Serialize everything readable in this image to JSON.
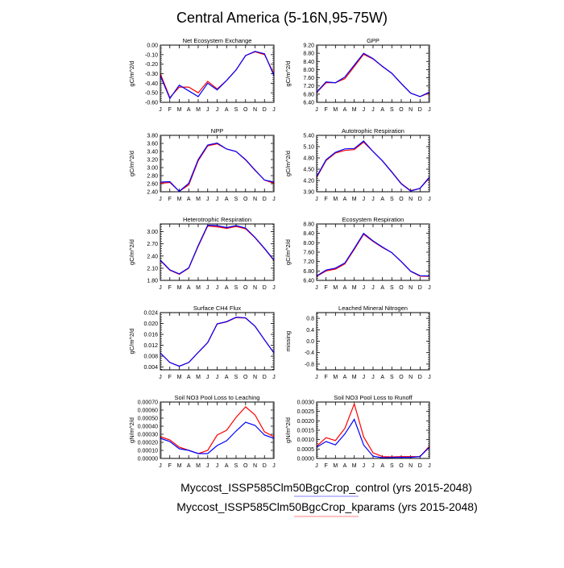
{
  "title": "Central America (5-16N,95-75W)",
  "legend": [
    {
      "label": "Myccost_ISSP585Clm50BgcCrop_control (yrs 2015-2048)",
      "color": "#0000ff"
    },
    {
      "label": "Myccost_ISSP585Clm50BgcCrop_kparams (yrs 2015-2048)",
      "color": "#ff0000"
    }
  ],
  "chart_data": [
    {
      "type": "line",
      "title": "Net Ecosystem Exchange",
      "ylabel": "gC/m^2/d",
      "ylim": [
        -0.6,
        0.0
      ],
      "yticks": [
        "0.00",
        "-0.10",
        "-0.20",
        "-0.30",
        "-0.40",
        "-0.50",
        "-0.60"
      ],
      "ytickvals": [
        0,
        -0.1,
        -0.2,
        -0.3,
        -0.4,
        -0.5,
        -0.6
      ],
      "categories": [
        "J",
        "F",
        "M",
        "A",
        "M",
        "J",
        "J",
        "A",
        "S",
        "O",
        "N",
        "D",
        "J"
      ],
      "series": [
        {
          "name": "kparams",
          "color": "#ff0000",
          "values": [
            -0.3,
            -0.55,
            -0.44,
            -0.44,
            -0.5,
            -0.38,
            -0.46,
            -0.37,
            -0.26,
            -0.11,
            -0.07,
            -0.1,
            -0.3
          ]
        },
        {
          "name": "control",
          "color": "#0000ff",
          "values": [
            -0.32,
            -0.56,
            -0.42,
            -0.48,
            -0.54,
            -0.4,
            -0.47,
            -0.37,
            -0.26,
            -0.11,
            -0.065,
            -0.09,
            -0.32
          ]
        }
      ]
    },
    {
      "type": "line",
      "title": "GPP",
      "ylabel": "gC/m^2/d",
      "ylim": [
        6.4,
        9.2
      ],
      "yticks": [
        "9.20",
        "8.80",
        "8.40",
        "8.00",
        "7.60",
        "7.20",
        "6.80",
        "6.40"
      ],
      "ytickvals": [
        9.2,
        8.8,
        8.4,
        8.0,
        7.6,
        7.2,
        6.8,
        6.4
      ],
      "categories": [
        "J",
        "F",
        "M",
        "A",
        "M",
        "J",
        "J",
        "A",
        "S",
        "O",
        "N",
        "D",
        "J"
      ],
      "series": [
        {
          "name": "kparams",
          "color": "#ff0000",
          "values": [
            6.88,
            7.36,
            7.36,
            7.56,
            8.15,
            8.75,
            8.52,
            8.15,
            7.82,
            7.32,
            6.85,
            6.68,
            6.86
          ]
        },
        {
          "name": "control",
          "color": "#0000ff",
          "values": [
            6.9,
            7.4,
            7.36,
            7.64,
            8.22,
            8.8,
            8.54,
            8.16,
            7.82,
            7.32,
            6.85,
            6.68,
            6.9
          ]
        }
      ]
    },
    {
      "type": "line",
      "title": "NPP",
      "ylabel": "gC/m^2/d",
      "ylim": [
        2.4,
        3.8
      ],
      "yticks": [
        "3.80",
        "3.60",
        "3.40",
        "3.20",
        "3.00",
        "2.80",
        "2.60",
        "2.40"
      ],
      "ytickvals": [
        3.8,
        3.6,
        3.4,
        3.2,
        3.0,
        2.8,
        2.6,
        2.4
      ],
      "categories": [
        "J",
        "F",
        "M",
        "A",
        "M",
        "J",
        "J",
        "A",
        "S",
        "O",
        "N",
        "D",
        "J"
      ],
      "series": [
        {
          "name": "kparams",
          "color": "#ff0000",
          "values": [
            2.61,
            2.63,
            2.41,
            2.57,
            3.17,
            3.54,
            3.59,
            3.46,
            3.4,
            3.19,
            2.93,
            2.69,
            2.61
          ]
        },
        {
          "name": "control",
          "color": "#0000ff",
          "values": [
            2.64,
            2.65,
            2.41,
            2.61,
            3.2,
            3.56,
            3.61,
            3.46,
            3.4,
            3.2,
            2.94,
            2.69,
            2.64
          ]
        }
      ]
    },
    {
      "type": "line",
      "title": "Autotrophic Respiration",
      "ylabel": "gC/m^2/d",
      "ylim": [
        3.9,
        5.4
      ],
      "yticks": [
        "5.40",
        "5.10",
        "4.80",
        "4.50",
        "4.20",
        "3.90"
      ],
      "ytickvals": [
        5.4,
        5.1,
        4.8,
        4.5,
        4.2,
        3.9
      ],
      "categories": [
        "J",
        "F",
        "M",
        "A",
        "M",
        "J",
        "J",
        "A",
        "S",
        "O",
        "N",
        "D",
        "J"
      ],
      "series": [
        {
          "name": "kparams",
          "color": "#ff0000",
          "values": [
            4.28,
            4.73,
            4.93,
            5.0,
            5.02,
            5.22,
            4.97,
            4.72,
            4.43,
            4.12,
            3.93,
            3.99,
            4.27
          ]
        },
        {
          "name": "control",
          "color": "#0000ff",
          "values": [
            4.3,
            4.75,
            4.95,
            5.04,
            5.05,
            5.25,
            4.97,
            4.72,
            4.42,
            4.11,
            3.92,
            3.99,
            4.29
          ]
        }
      ]
    },
    {
      "type": "line",
      "title": "Heterotrophic Respiration",
      "ylabel": "gC/m^2/d",
      "ylim": [
        1.8,
        3.19
      ],
      "yticks": [
        "3.00",
        "2.70",
        "2.40",
        "2.10",
        "1.80"
      ],
      "ytickvals": [
        3.0,
        2.7,
        2.4,
        2.1,
        1.8
      ],
      "categories": [
        "J",
        "F",
        "M",
        "A",
        "M",
        "J",
        "J",
        "A",
        "S",
        "O",
        "N",
        "D",
        "J"
      ],
      "series": [
        {
          "name": "kparams",
          "color": "#ff0000",
          "values": [
            2.29,
            2.05,
            1.95,
            2.1,
            2.64,
            3.14,
            3.12,
            3.08,
            3.13,
            3.07,
            2.85,
            2.58,
            2.29
          ]
        },
        {
          "name": "control",
          "color": "#0000ff",
          "values": [
            2.3,
            2.06,
            1.96,
            2.11,
            2.66,
            3.16,
            3.15,
            3.1,
            3.15,
            3.09,
            2.86,
            2.59,
            2.3
          ]
        }
      ]
    },
    {
      "type": "line",
      "title": "Ecosystem Respiration",
      "ylabel": "gC/m^2/d",
      "ylim": [
        6.4,
        8.8
      ],
      "yticks": [
        "8.80",
        "8.40",
        "8.00",
        "7.60",
        "7.20",
        "6.80",
        "6.40"
      ],
      "ytickvals": [
        8.8,
        8.4,
        8.0,
        7.6,
        7.2,
        6.8,
        6.4
      ],
      "categories": [
        "J",
        "F",
        "M",
        "A",
        "M",
        "J",
        "J",
        "A",
        "S",
        "O",
        "N",
        "D",
        "J"
      ],
      "series": [
        {
          "name": "kparams",
          "color": "#ff0000",
          "values": [
            6.57,
            6.8,
            6.88,
            7.1,
            7.72,
            8.36,
            8.06,
            7.8,
            7.58,
            7.2,
            6.78,
            6.58,
            6.57
          ]
        },
        {
          "name": "control",
          "color": "#0000ff",
          "values": [
            6.59,
            6.84,
            6.92,
            7.14,
            7.76,
            8.4,
            8.08,
            7.82,
            7.58,
            7.2,
            6.79,
            6.6,
            6.59
          ]
        }
      ]
    },
    {
      "type": "line",
      "title": "Surface CH4 Flux",
      "ylabel": "gC/m^2/d",
      "ylim": [
        0.003,
        0.024
      ],
      "yticks": [
        "0.024",
        "0.020",
        "0.016",
        "0.012",
        "0.008",
        "0.004"
      ],
      "ytickvals": [
        0.024,
        0.02,
        0.016,
        0.012,
        0.008,
        0.004
      ],
      "categories": [
        "J",
        "F",
        "M",
        "A",
        "M",
        "J",
        "J",
        "A",
        "S",
        "O",
        "N",
        "D",
        "J"
      ],
      "series": [
        {
          "name": "kparams",
          "color": "#ff0000",
          "values": [
            0.0092,
            0.0057,
            0.0043,
            0.0057,
            0.0094,
            0.013,
            0.0198,
            0.0206,
            0.0222,
            0.022,
            0.019,
            0.014,
            0.0092
          ]
        },
        {
          "name": "control",
          "color": "#0000ff",
          "values": [
            0.0092,
            0.0057,
            0.0043,
            0.0057,
            0.0094,
            0.013,
            0.0199,
            0.0207,
            0.0223,
            0.0221,
            0.019,
            0.014,
            0.0092
          ]
        }
      ]
    },
    {
      "type": "line",
      "title": "Leached Mineral Nitrogen",
      "ylabel": "missing",
      "ylim": [
        -1.0,
        1.0
      ],
      "yticks": [
        "0.8",
        "0.4",
        "0.0",
        "-0.4",
        "-0.8"
      ],
      "ytickvals": [
        0.8,
        0.4,
        0.0,
        -0.4,
        -0.8
      ],
      "categories": [
        "J",
        "F",
        "M",
        "A",
        "M",
        "J",
        "J",
        "A",
        "S",
        "O",
        "N",
        "D",
        "J"
      ],
      "series": []
    },
    {
      "type": "line",
      "title": "Soil NO3 Pool Loss to Leaching",
      "ylabel": "gN/m^2/d",
      "ylim": [
        0,
        0.0007
      ],
      "yticks": [
        "0.00070",
        "0.00060",
        "0.00050",
        "0.00040",
        "0.00030",
        "0.00020",
        "0.00010",
        "0.00000"
      ],
      "ytickvals": [
        0.0007,
        0.0006,
        0.0005,
        0.0004,
        0.0003,
        0.0002,
        0.0001,
        0
      ],
      "categories": [
        "J",
        "F",
        "M",
        "A",
        "M",
        "J",
        "J",
        "A",
        "S",
        "O",
        "N",
        "D",
        "J"
      ],
      "series": [
        {
          "name": "kparams",
          "color": "#ff0000",
          "values": [
            0.00027,
            0.00023,
            0.00014,
            0.0001,
            6e-05,
            0.0001,
            0.00029,
            0.00035,
            0.00051,
            0.00064,
            0.00054,
            0.00033,
            0.00027
          ]
        },
        {
          "name": "control",
          "color": "#0000ff",
          "values": [
            0.00025,
            0.00021,
            0.00012,
            0.0001,
            6e-05,
            6e-05,
            0.00016,
            0.00022,
            0.00034,
            0.00045,
            0.00041,
            0.00029,
            0.00025
          ]
        }
      ]
    },
    {
      "type": "line",
      "title": "Soil NO3 Pool Loss to Runoff",
      "ylabel": "gN/m^2/d",
      "ylim": [
        0,
        0.003
      ],
      "yticks": [
        "0.0030",
        "0.0025",
        "0.0020",
        "0.0015",
        "0.0010",
        "0.0005",
        "0.0000"
      ],
      "ytickvals": [
        0.003,
        0.0025,
        0.002,
        0.0015,
        0.001,
        0.0005,
        0
      ],
      "categories": [
        "J",
        "F",
        "M",
        "A",
        "M",
        "J",
        "J",
        "A",
        "S",
        "O",
        "N",
        "D",
        "J"
      ],
      "series": [
        {
          "name": "kparams",
          "color": "#ff0000",
          "values": [
            0.00065,
            0.0011,
            0.00095,
            0.0016,
            0.0029,
            0.00115,
            0.0003,
            0.0001,
            8e-05,
            0.0001,
            0.0001,
            0.0001,
            0.00065
          ]
        },
        {
          "name": "control",
          "color": "#0000ff",
          "values": [
            0.0006,
            0.0009,
            0.00072,
            0.0013,
            0.00208,
            0.00072,
            0.00012,
            4e-05,
            5e-05,
            6e-05,
            6e-05,
            0.0001,
            0.0006
          ]
        }
      ]
    }
  ]
}
